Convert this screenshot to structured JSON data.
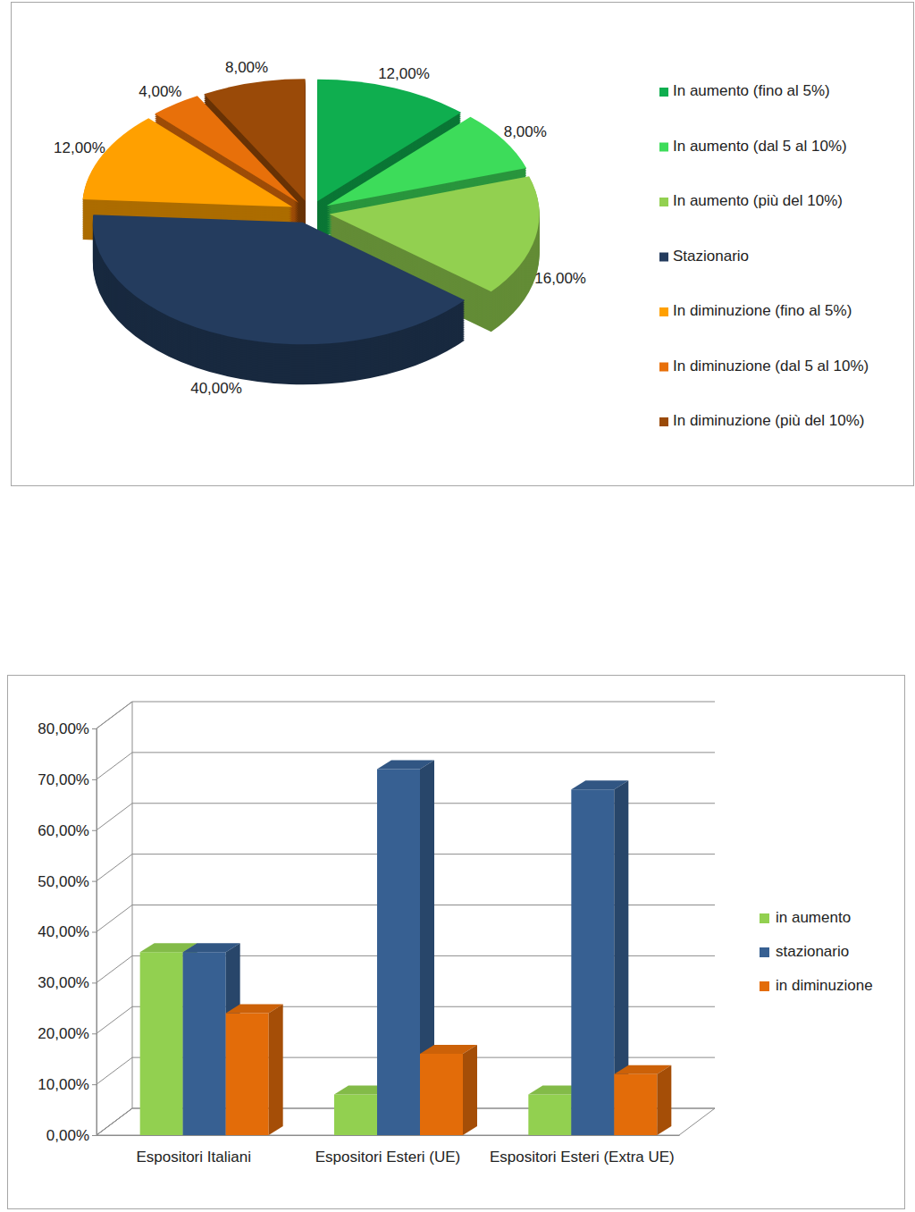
{
  "chart_data": [
    {
      "type": "pie",
      "categories": [
        "In aumento (fino al 5%)",
        "In aumento (dal 5 al 10%)",
        "In aumento (più del 10%)",
        "Stazionario",
        "In diminuzione (fino al 5%)",
        "In diminuzione (dal 5 al 10%)",
        "In diminuzione (più del 10%)"
      ],
      "values": [
        12,
        8,
        16,
        40,
        12,
        4,
        8
      ],
      "value_labels": [
        "12,00%",
        "8,00%",
        "16,00%",
        "40,00%",
        "12,00%",
        "4,00%",
        "8,00%"
      ],
      "colors": [
        "#0fae4f",
        "#3ddc5a",
        "#92d050",
        "#243c5e",
        "#ffa000",
        "#e8700a",
        "#9a4a08"
      ],
      "data_labels": true,
      "legend": "right"
    },
    {
      "type": "bar",
      "categories": [
        "Espositori Italiani",
        "Espositori Esteri (UE)",
        "Espositori Esteri (Extra UE)"
      ],
      "series": [
        {
          "name": "in aumento",
          "color": "#92d050",
          "values": [
            36,
            8,
            8
          ]
        },
        {
          "name": "stazionario",
          "color": "#376092",
          "values": [
            36,
            72,
            68
          ]
        },
        {
          "name": "in diminuzione",
          "color": "#e36c09",
          "values": [
            24,
            16,
            12
          ]
        }
      ],
      "ylim": [
        0,
        80
      ],
      "yticks": [
        {
          "value": 0,
          "label": "0,00%"
        },
        {
          "value": 10,
          "label": "10,00%"
        },
        {
          "value": 20,
          "label": "20,00%"
        },
        {
          "value": 30,
          "label": "30,00%"
        },
        {
          "value": 40,
          "label": "40,00%"
        },
        {
          "value": 50,
          "label": "50,00%"
        },
        {
          "value": 60,
          "label": "60,00%"
        },
        {
          "value": 70,
          "label": "70,00%"
        },
        {
          "value": 80,
          "label": "80,00%"
        }
      ],
      "grid": true,
      "legend": "right"
    }
  ]
}
